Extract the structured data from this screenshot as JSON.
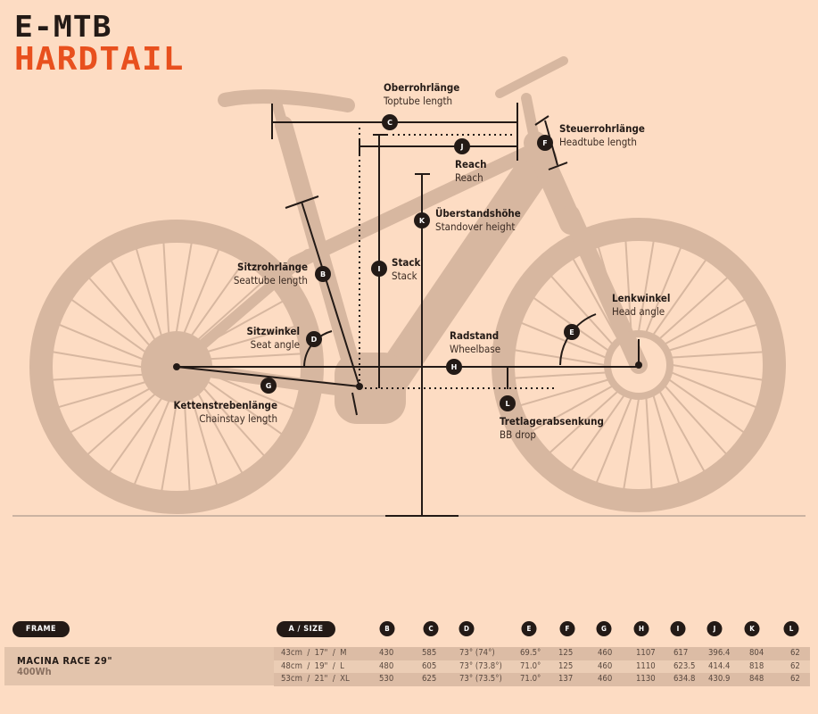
{
  "title": {
    "line1": "E-MTB",
    "line2": "HARDTAIL"
  },
  "colors": {
    "background": "#fddcc3",
    "accent": "#e8501e",
    "dark": "#231a16",
    "silhouette": "#d7b7a0"
  },
  "measurements": {
    "B": {
      "badge": "B",
      "de": "Sitzrohrlänge",
      "en": "Seattube length"
    },
    "C": {
      "badge": "C",
      "de": "Oberrohrlänge",
      "en": "Toptube length"
    },
    "D": {
      "badge": "D",
      "de": "Sitzwinkel",
      "en": "Seat angle"
    },
    "E": {
      "badge": "E",
      "de": "Lenkwinkel",
      "en": "Head angle"
    },
    "F": {
      "badge": "F",
      "de": "Steuerrohrlänge",
      "en": "Headtube length"
    },
    "G": {
      "badge": "G",
      "de": "Kettenstrebenlänge",
      "en": "Chainstay length"
    },
    "H": {
      "badge": "H",
      "de": "Radstand",
      "en": "Wheelbase"
    },
    "I": {
      "badge": "I",
      "de": "Stack",
      "en": "Stack"
    },
    "J": {
      "badge": "J",
      "de": "Reach",
      "en": "Reach"
    },
    "K": {
      "badge": "K",
      "de": "Überstandshöhe",
      "en": "Standover height"
    },
    "L": {
      "badge": "L",
      "de": "Tretlagerabsenkung",
      "en": "BB drop"
    }
  },
  "table": {
    "frame_label": "FRAME",
    "size_label": "A / SIZE",
    "columns": [
      "B",
      "C",
      "D",
      "E",
      "F",
      "G",
      "H",
      "I",
      "J",
      "K",
      "L"
    ],
    "model": "MACINA RACE 29\"",
    "battery": "400Wh",
    "rows": [
      {
        "size": "43cm  /  17\"  /  M",
        "values": [
          "430",
          "585",
          "73° (74°)",
          "69.5°",
          "125",
          "460",
          "1107",
          "617",
          "396.4",
          "804",
          "62"
        ]
      },
      {
        "size": "48cm  /  19\"  /  L",
        "values": [
          "480",
          "605",
          "73° (73.8°)",
          "71.0°",
          "125",
          "460",
          "1110",
          "623.5",
          "414.4",
          "818",
          "62"
        ]
      },
      {
        "size": "53cm  /  21\"  /  XL",
        "values": [
          "530",
          "625",
          "73° (73.5°)",
          "71.0°",
          "137",
          "460",
          "1130",
          "634.8",
          "430.9",
          "848",
          "62"
        ]
      }
    ]
  }
}
